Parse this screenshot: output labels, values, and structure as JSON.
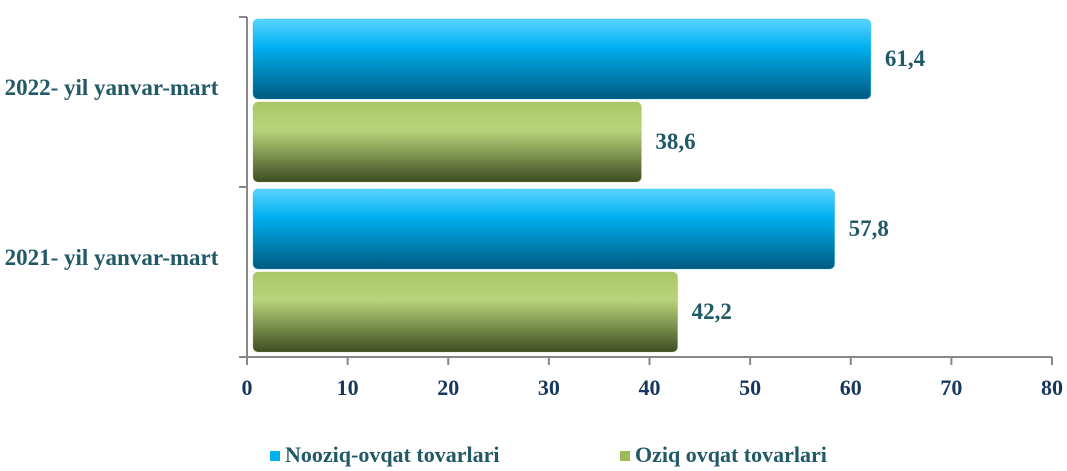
{
  "chart_data": {
    "type": "hbar",
    "categories": [
      "2022- yil yanvar-mart",
      "2021- yil yanvar-mart"
    ],
    "series": [
      {
        "name": "Nooziq-ovqat tovarlari",
        "color": "#00b0f0",
        "values": [
          61.4,
          57.8
        ],
        "value_labels": [
          "61,4",
          "57,8"
        ]
      },
      {
        "name": "Oziq ovqat tovarlari",
        "color": "#9bbb59",
        "values": [
          38.6,
          42.2
        ],
        "value_labels": [
          "38,6",
          "42,2"
        ]
      }
    ],
    "xlim": [
      0,
      80
    ],
    "xticks": [
      0,
      10,
      20,
      30,
      40,
      50,
      60,
      70,
      80
    ],
    "legend": "bottom"
  }
}
